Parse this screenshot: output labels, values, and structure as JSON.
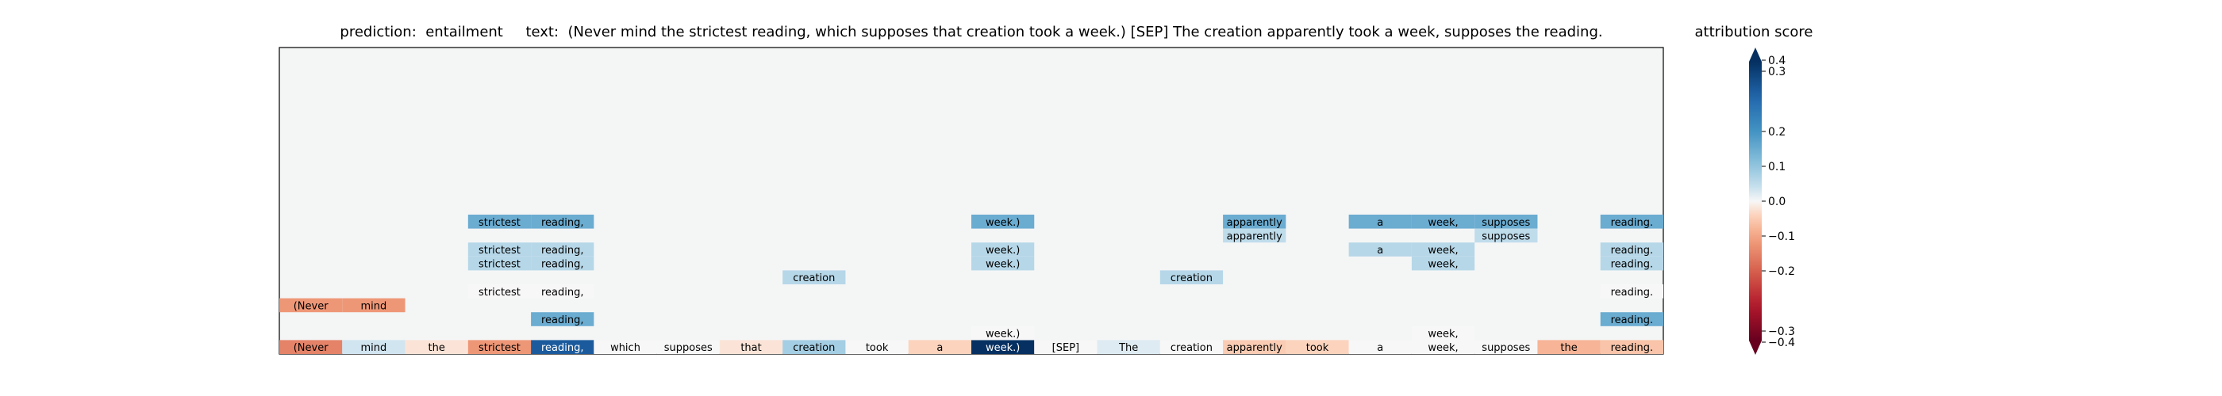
{
  "chart_data": {
    "type": "heatmap",
    "title": "prediction:  entailment     text:  (Never mind the strictest reading, which supposes that creation took a week.) [SEP] The creation apparently took a week, supposes the reading.",
    "prediction": "entailment",
    "tokens": [
      "(Never",
      "mind",
      "the",
      "strictest",
      "reading,",
      "which",
      "supposes",
      "that",
      "creation",
      "took",
      "a",
      "week.)",
      "[SEP]",
      "The",
      "creation",
      "apparently",
      "took",
      "a",
      "week,",
      "supposes",
      "the",
      "reading."
    ],
    "token_scores": [
      -0.15,
      0.03,
      -0.02,
      -0.12,
      0.32,
      0.0,
      0.0,
      -0.02,
      0.08,
      0.0,
      -0.04,
      0.42,
      0.0,
      0.02,
      0.0,
      -0.05,
      -0.04,
      0.0,
      0.0,
      0.0,
      -0.08,
      -0.06
    ],
    "annotation_rows": [
      {
        "row": 9,
        "cells": [
          [
            3,
            0.15
          ],
          [
            4,
            0.15
          ],
          [
            11,
            0.15
          ],
          [
            15,
            0.15
          ],
          [
            17,
            0.15
          ],
          [
            18,
            0.15
          ],
          [
            19,
            0.15
          ],
          [
            21,
            0.15
          ]
        ]
      },
      {
        "row": 8,
        "cells": [
          [
            15,
            0.05
          ],
          [
            19,
            0.05
          ]
        ]
      },
      {
        "row": 7,
        "cells": [
          [
            3,
            0.06
          ],
          [
            4,
            0.06
          ],
          [
            11,
            0.06
          ],
          [
            17,
            0.06
          ],
          [
            18,
            0.06
          ],
          [
            21,
            0.06
          ]
        ]
      },
      {
        "row": 6,
        "cells": [
          [
            3,
            0.06
          ],
          [
            4,
            0.06
          ],
          [
            11,
            0.06
          ],
          [
            18,
            0.06
          ],
          [
            21,
            0.06
          ]
        ]
      },
      {
        "row": 5,
        "cells": [
          [
            8,
            0.06
          ],
          [
            14,
            0.06
          ]
        ]
      },
      {
        "row": 4,
        "cells": [
          [
            3,
            0.0
          ],
          [
            4,
            0.0
          ],
          [
            21,
            0.0
          ]
        ]
      },
      {
        "row": 3,
        "cells": [
          [
            0,
            -0.12
          ],
          [
            1,
            -0.12
          ]
        ]
      },
      {
        "row": 2,
        "cells": [
          [
            4,
            0.15
          ],
          [
            21,
            0.15
          ]
        ]
      },
      {
        "row": 1,
        "cells": [
          [
            11,
            0.0
          ],
          [
            18,
            0.0
          ]
        ]
      }
    ],
    "colorbar": {
      "label": "attribution score",
      "range": [
        -0.4,
        0.4
      ],
      "ticks": [
        "0.4",
        "0.3",
        "0.2",
        "0.1",
        "0.0",
        "−0.1",
        "−0.2",
        "−0.3",
        "−0.4"
      ],
      "colormap": "RdBu"
    },
    "grid": false
  }
}
